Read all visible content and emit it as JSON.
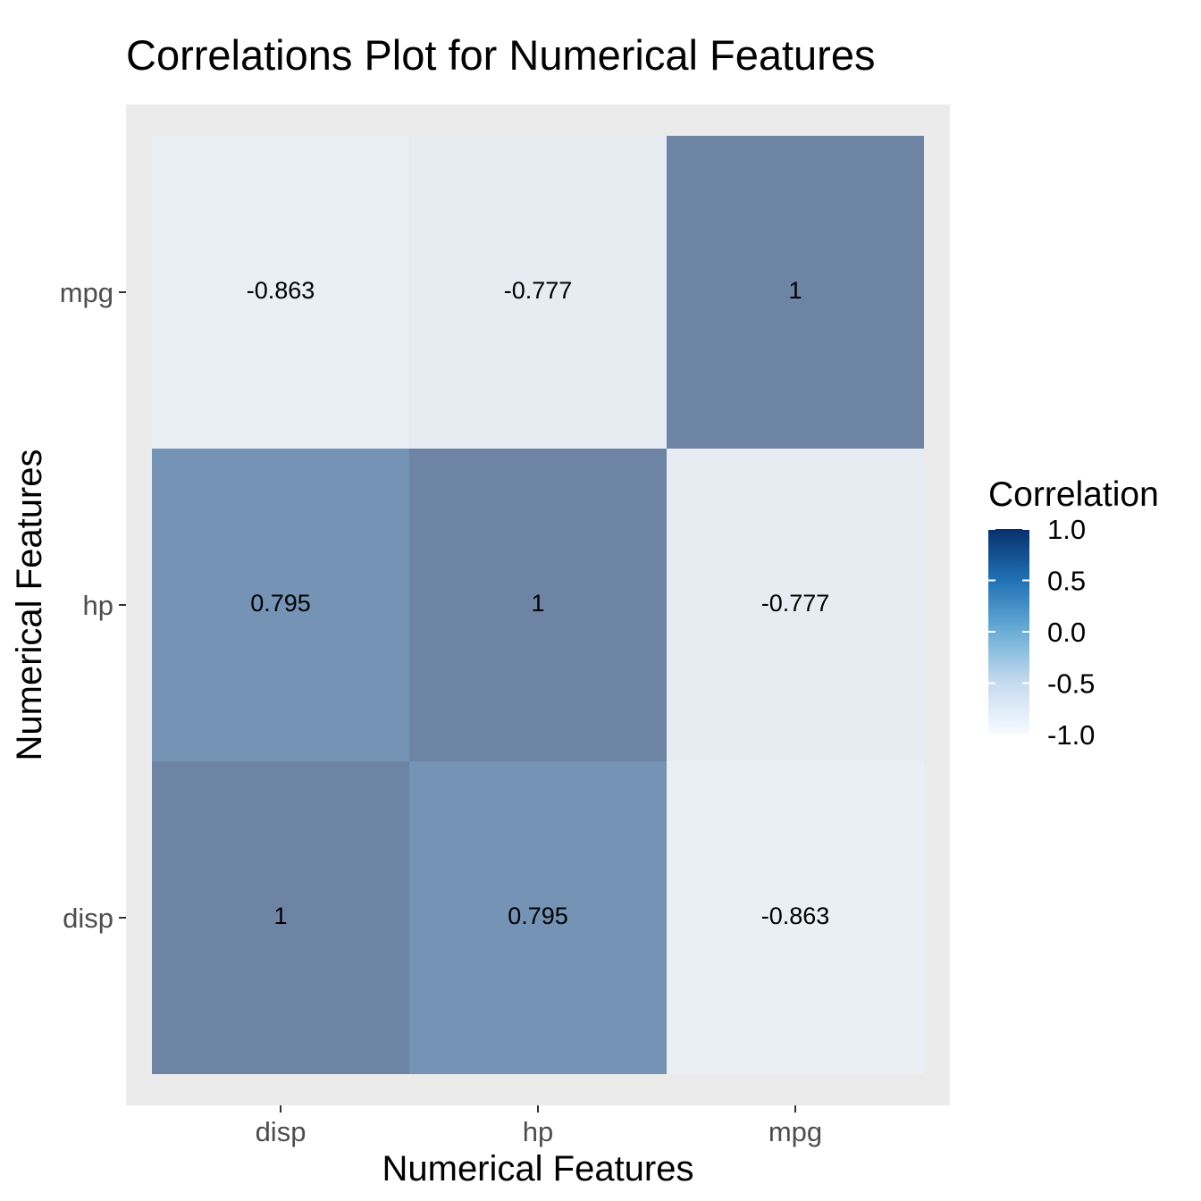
{
  "chart_data": {
    "type": "heatmap",
    "title": "Correlations Plot for Numerical Features",
    "xlabel": "Numerical Features",
    "ylabel": "Numerical Features",
    "x_categories": [
      "disp",
      "hp",
      "mpg"
    ],
    "y_categories": [
      "disp",
      "hp",
      "mpg"
    ],
    "cells": [
      {
        "x": "disp",
        "y": "disp",
        "value": 1,
        "label": "1"
      },
      {
        "x": "hp",
        "y": "disp",
        "value": 0.795,
        "label": "0.795"
      },
      {
        "x": "mpg",
        "y": "disp",
        "value": -0.863,
        "label": "-0.863"
      },
      {
        "x": "disp",
        "y": "hp",
        "value": 0.795,
        "label": "0.795"
      },
      {
        "x": "hp",
        "y": "hp",
        "value": 1,
        "label": "1"
      },
      {
        "x": "mpg",
        "y": "hp",
        "value": -0.777,
        "label": "-0.777"
      },
      {
        "x": "disp",
        "y": "mpg",
        "value": -0.863,
        "label": "-0.863"
      },
      {
        "x": "hp",
        "y": "mpg",
        "value": -0.777,
        "label": "-0.777"
      },
      {
        "x": "mpg",
        "y": "mpg",
        "value": 1,
        "label": "1"
      }
    ],
    "legend": {
      "title": "Correlation",
      "placement": "right",
      "range": [
        -1,
        1
      ],
      "breaks": [
        1.0,
        0.5,
        0.0,
        -0.5,
        -1.0
      ],
      "break_labels": [
        "1.0",
        "0.5",
        "0.0",
        "-0.5",
        "-1.0"
      ],
      "colors": [
        "#f7fbff",
        "#c6dbef",
        "#6baed6",
        "#2171b5",
        "#08306b"
      ]
    },
    "panel_background": "#ebebeb",
    "grid": false
  }
}
